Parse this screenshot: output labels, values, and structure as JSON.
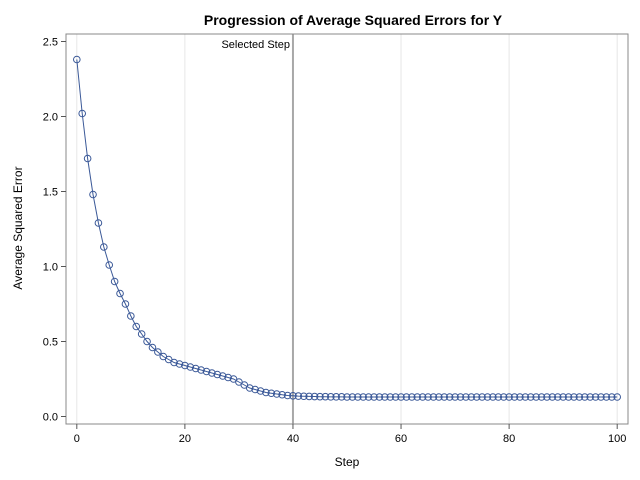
{
  "chart_data": {
    "type": "line",
    "title": "Progression of Average Squared Errors for Y",
    "xlabel": "Step",
    "ylabel": "Average Squared Error",
    "xlim": [
      -2,
      102
    ],
    "ylim": [
      -0.05,
      2.55
    ],
    "xticks": [
      "0",
      "20",
      "40",
      "60",
      "80",
      "100"
    ],
    "xtick_values": [
      0,
      20,
      40,
      60,
      80,
      100
    ],
    "yticks": [
      "0.0",
      "0.5",
      "1.0",
      "1.5",
      "2.0",
      "2.5"
    ],
    "ytick_values": [
      0,
      0.5,
      1.0,
      1.5,
      2.0,
      2.5
    ],
    "grid": "vertical",
    "reference_line": {
      "x": 40,
      "label": "Selected Step"
    },
    "series": [
      {
        "color": "#3b5998",
        "marker": "open-circle",
        "x": [
          0,
          1,
          2,
          3,
          4,
          5,
          6,
          7,
          8,
          9,
          10,
          11,
          12,
          13,
          14,
          15,
          16,
          17,
          18,
          19,
          20,
          21,
          22,
          23,
          24,
          25,
          26,
          27,
          28,
          29,
          30,
          31,
          32,
          33,
          34,
          35,
          36,
          37,
          38,
          39,
          40,
          41,
          42,
          43,
          44,
          45,
          46,
          47,
          48,
          49,
          50,
          51,
          52,
          53,
          54,
          55,
          56,
          57,
          58,
          59,
          60,
          61,
          62,
          63,
          64,
          65,
          66,
          67,
          68,
          69,
          70,
          71,
          72,
          73,
          74,
          75,
          76,
          77,
          78,
          79,
          80,
          81,
          82,
          83,
          84,
          85,
          86,
          87,
          88,
          89,
          90,
          91,
          92,
          93,
          94,
          95,
          96,
          97,
          98,
          99,
          100
        ],
        "values": [
          2.38,
          2.02,
          1.72,
          1.48,
          1.29,
          1.13,
          1.01,
          0.9,
          0.82,
          0.75,
          0.67,
          0.6,
          0.55,
          0.5,
          0.46,
          0.43,
          0.4,
          0.38,
          0.36,
          0.35,
          0.34,
          0.33,
          0.32,
          0.31,
          0.3,
          0.29,
          0.28,
          0.27,
          0.26,
          0.25,
          0.23,
          0.21,
          0.19,
          0.18,
          0.17,
          0.16,
          0.155,
          0.15,
          0.145,
          0.14,
          0.138,
          0.136,
          0.135,
          0.134,
          0.133,
          0.132,
          0.132,
          0.131,
          0.131,
          0.131,
          0.13,
          0.13,
          0.13,
          0.13,
          0.13,
          0.13,
          0.13,
          0.13,
          0.13,
          0.13,
          0.13,
          0.13,
          0.13,
          0.13,
          0.13,
          0.13,
          0.13,
          0.13,
          0.13,
          0.13,
          0.13,
          0.13,
          0.13,
          0.13,
          0.13,
          0.13,
          0.13,
          0.13,
          0.13,
          0.13,
          0.13,
          0.13,
          0.13,
          0.13,
          0.13,
          0.13,
          0.13,
          0.13,
          0.13,
          0.13,
          0.13,
          0.13,
          0.13,
          0.13,
          0.13,
          0.13,
          0.13,
          0.13,
          0.13,
          0.13,
          0.13
        ]
      }
    ]
  }
}
